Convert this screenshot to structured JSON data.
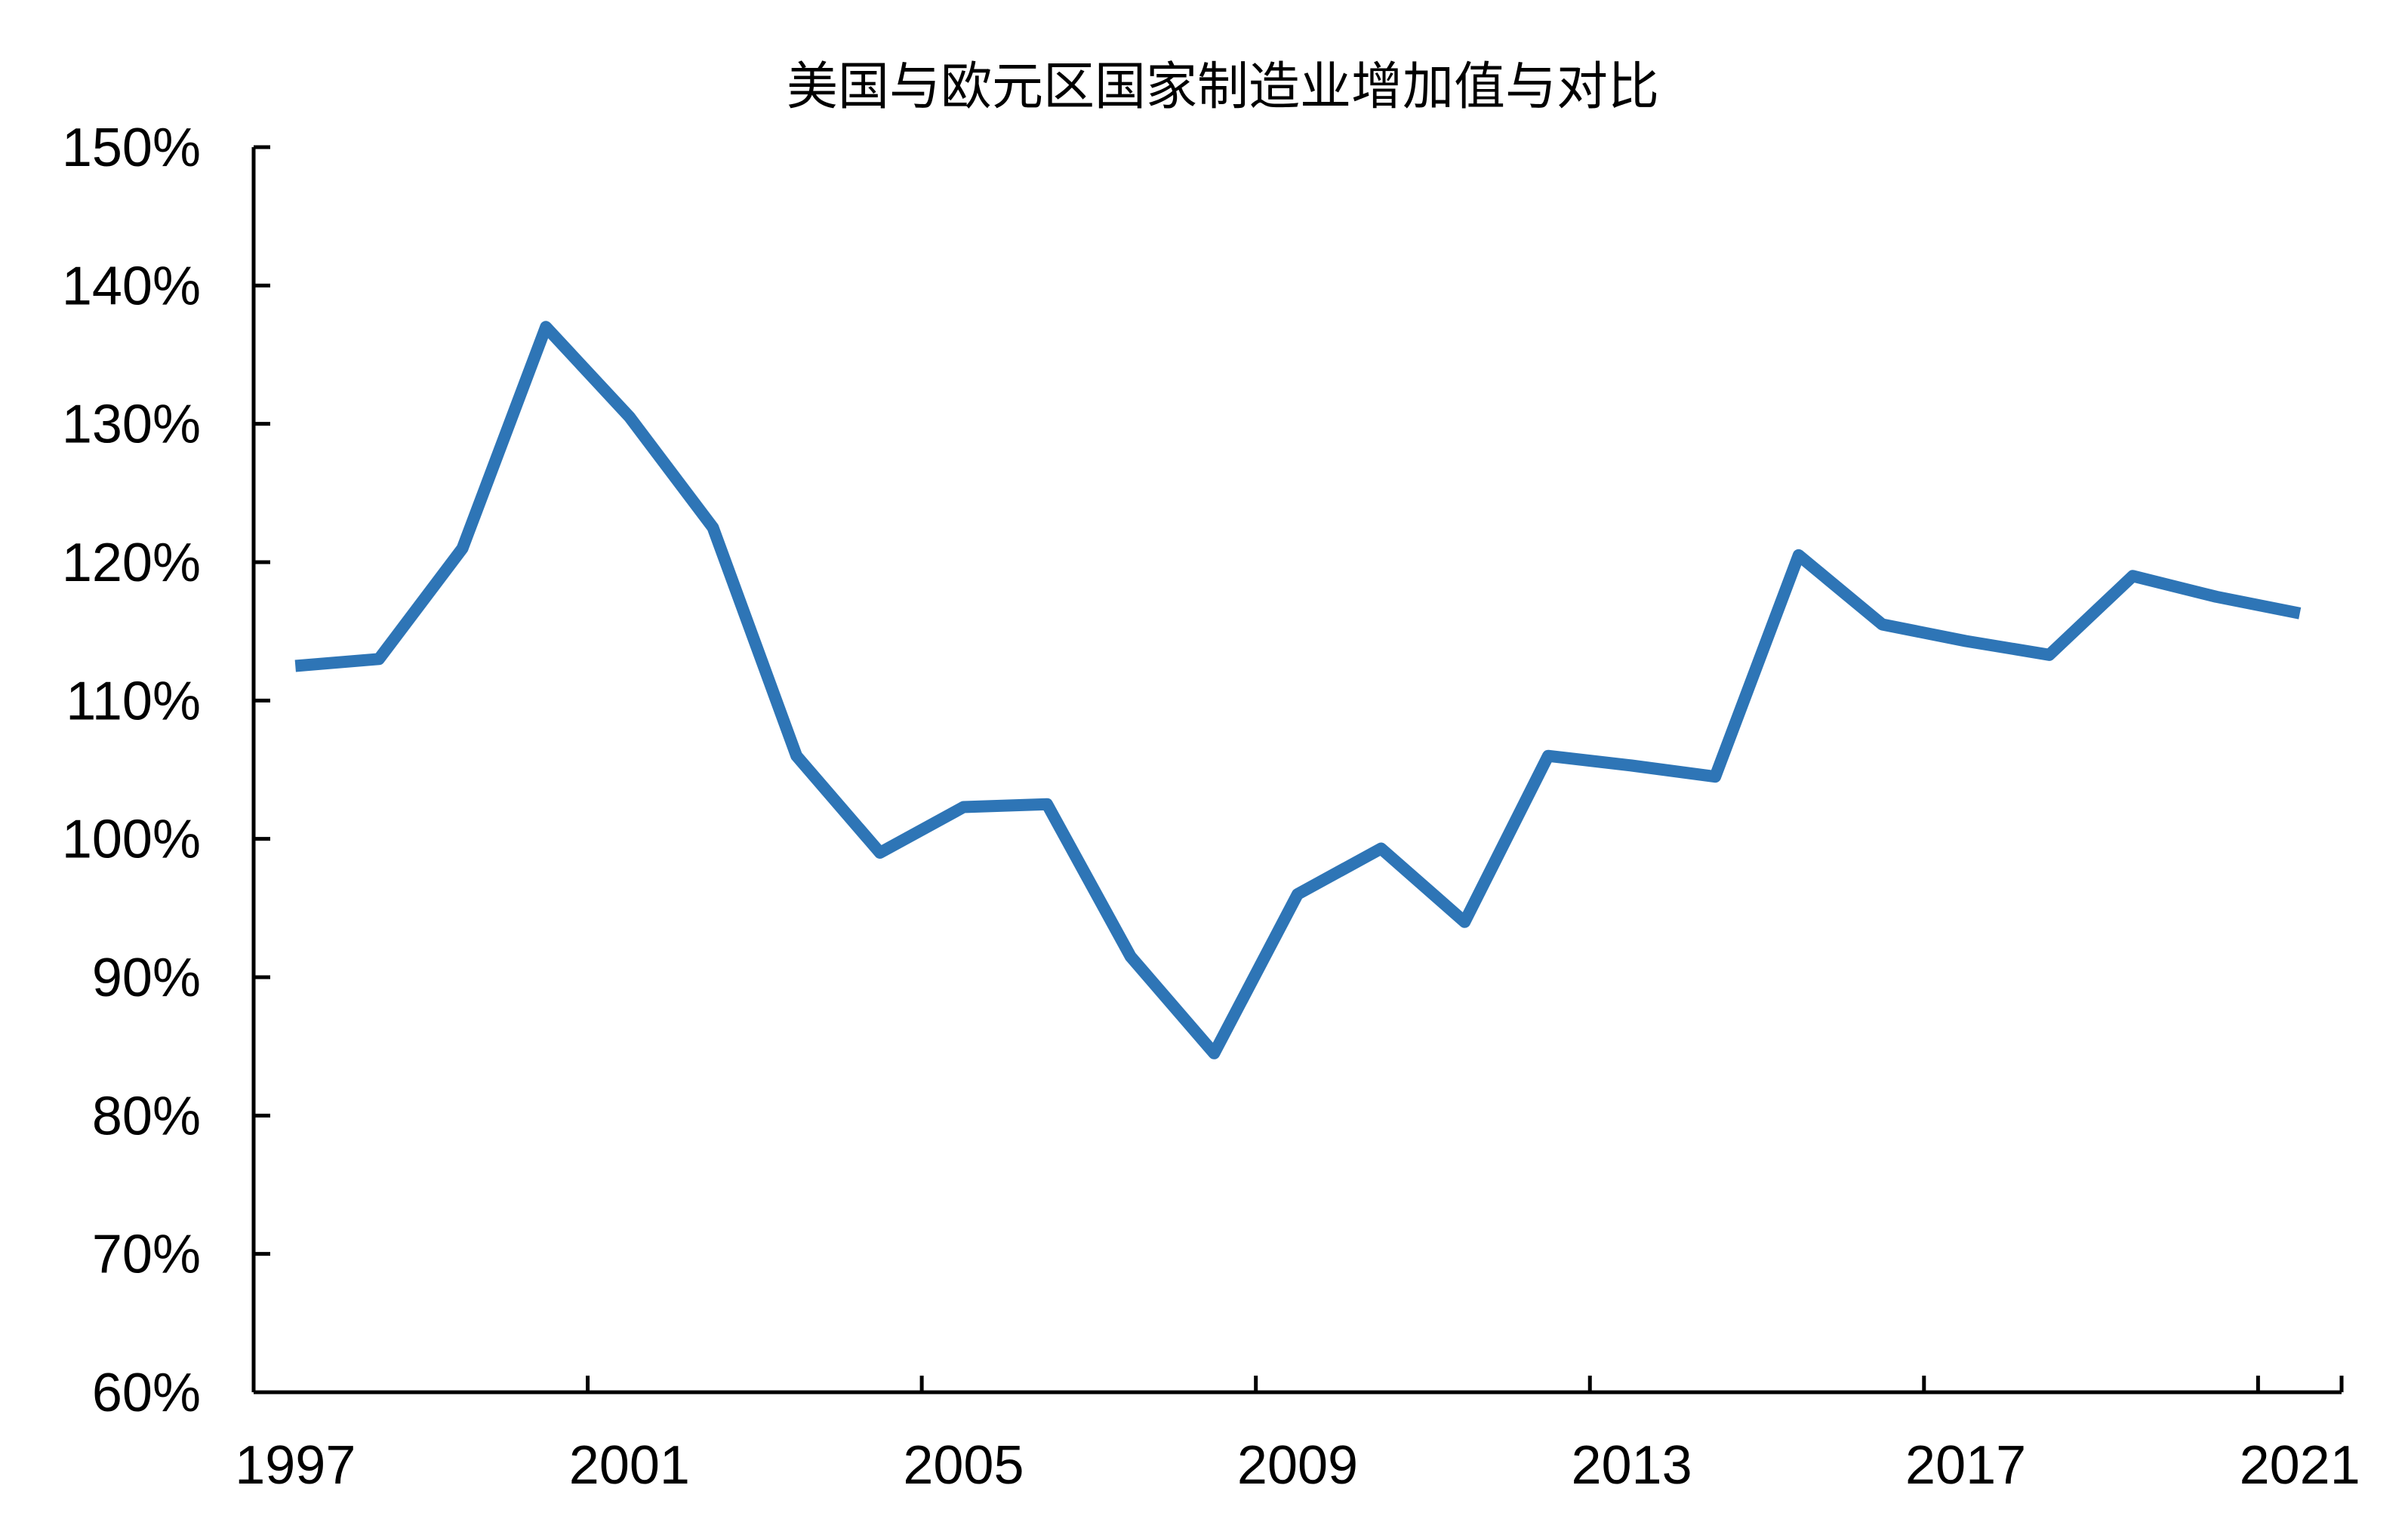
{
  "chart_data": {
    "type": "line",
    "title": "美国与欧元区国家制造业增加值与对比",
    "xlabel": "",
    "ylabel": "",
    "ylim": [
      60,
      150
    ],
    "y_ticks": [
      60,
      70,
      80,
      90,
      100,
      110,
      120,
      130,
      140,
      150
    ],
    "y_tick_labels": [
      "60%",
      "70%",
      "80%",
      "90%",
      "100%",
      "110%",
      "120%",
      "130%",
      "140%",
      "150%"
    ],
    "x_range": [
      1997,
      2022
    ],
    "x_tick_labels": [
      "1997",
      "2001",
      "2005",
      "2009",
      "2013",
      "2017",
      "2021"
    ],
    "x_label_years": [
      1997,
      2001,
      2005,
      2009,
      2013,
      2017,
      2021
    ],
    "grid": false,
    "colors": {
      "series": "#2E75B6",
      "axis": "#000000"
    },
    "x": [
      1997,
      1998,
      1999,
      2000,
      2001,
      2002,
      2003,
      2004,
      2005,
      2006,
      2007,
      2008,
      2009,
      2010,
      2011,
      2012,
      2013,
      2014,
      2015,
      2016,
      2017,
      2018,
      2019,
      2020,
      2021
    ],
    "series": [
      {
        "values": [
          112.5,
          113.0,
          121.0,
          137.0,
          130.5,
          122.5,
          106.0,
          99.0,
          102.3,
          102.5,
          91.5,
          84.5,
          96.0,
          99.3,
          94.0,
          106.0,
          105.3,
          104.5,
          120.5,
          115.5,
          114.3,
          113.3,
          119.0,
          117.5,
          116.3
        ]
      }
    ]
  }
}
